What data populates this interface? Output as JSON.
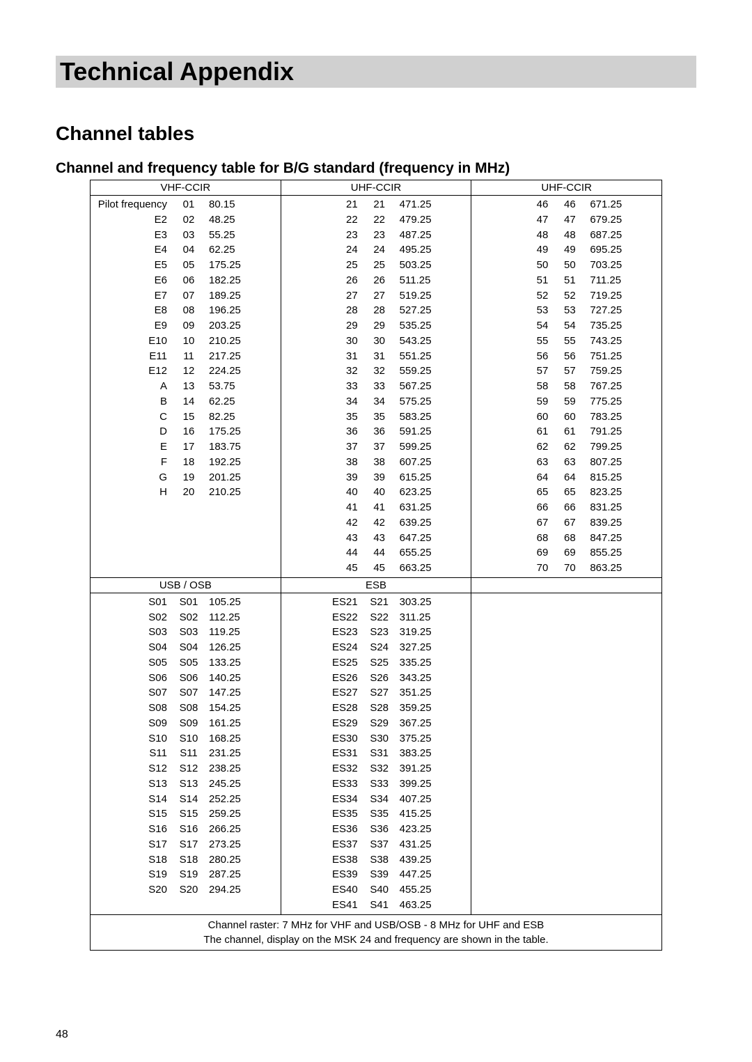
{
  "page_number": "48",
  "title": "Technical Appendix",
  "subtitle": "Channel tables",
  "section_title": "Channel and frequency table for B/G standard (frequency in MHz)",
  "footer_note1": "Channel raster: 7 MHz for VHF and USB/OSB - 8 MHz for UHF and ESB",
  "footer_note2": "The channel, display on the MSK 24 and frequency are shown in the table.",
  "top_bands": [
    {
      "header": "VHF-CCIR",
      "rows": [
        [
          "Pilot frequency",
          "01",
          "80.15"
        ],
        [
          "E2",
          "02",
          "48.25"
        ],
        [
          "E3",
          "03",
          "55.25"
        ],
        [
          "E4",
          "04",
          "62.25"
        ],
        [
          "E5",
          "05",
          "175.25"
        ],
        [
          "E6",
          "06",
          "182.25"
        ],
        [
          "E7",
          "07",
          "189.25"
        ],
        [
          "E8",
          "08",
          "196.25"
        ],
        [
          "E9",
          "09",
          "203.25"
        ],
        [
          "E10",
          "10",
          "210.25"
        ],
        [
          "E11",
          "11",
          "217.25"
        ],
        [
          "E12",
          "12",
          "224.25"
        ],
        [
          "A",
          "13",
          "53.75"
        ],
        [
          "B",
          "14",
          "62.25"
        ],
        [
          "C",
          "15",
          "82.25"
        ],
        [
          "D",
          "16",
          "175.25"
        ],
        [
          "E",
          "17",
          "183.75"
        ],
        [
          "F",
          "18",
          "192.25"
        ],
        [
          "G",
          "19",
          "201.25"
        ],
        [
          "H",
          "20",
          "210.25"
        ],
        [
          "",
          "",
          ""
        ],
        [
          "",
          "",
          ""
        ],
        [
          "",
          "",
          ""
        ],
        [
          "",
          "",
          ""
        ],
        [
          "",
          "",
          ""
        ]
      ]
    },
    {
      "header": "UHF-CCIR",
      "rows": [
        [
          "21",
          "21",
          "471.25"
        ],
        [
          "22",
          "22",
          "479.25"
        ],
        [
          "23",
          "23",
          "487.25"
        ],
        [
          "24",
          "24",
          "495.25"
        ],
        [
          "25",
          "25",
          "503.25"
        ],
        [
          "26",
          "26",
          "511.25"
        ],
        [
          "27",
          "27",
          "519.25"
        ],
        [
          "28",
          "28",
          "527.25"
        ],
        [
          "29",
          "29",
          "535.25"
        ],
        [
          "30",
          "30",
          "543.25"
        ],
        [
          "31",
          "31",
          "551.25"
        ],
        [
          "32",
          "32",
          "559.25"
        ],
        [
          "33",
          "33",
          "567.25"
        ],
        [
          "34",
          "34",
          "575.25"
        ],
        [
          "35",
          "35",
          "583.25"
        ],
        [
          "36",
          "36",
          "591.25"
        ],
        [
          "37",
          "37",
          "599.25"
        ],
        [
          "38",
          "38",
          "607.25"
        ],
        [
          "39",
          "39",
          "615.25"
        ],
        [
          "40",
          "40",
          "623.25"
        ],
        [
          "41",
          "41",
          "631.25"
        ],
        [
          "42",
          "42",
          "639.25"
        ],
        [
          "43",
          "43",
          "647.25"
        ],
        [
          "44",
          "44",
          "655.25"
        ],
        [
          "45",
          "45",
          "663.25"
        ]
      ]
    },
    {
      "header": "UHF-CCIR",
      "rows": [
        [
          "46",
          "46",
          "671.25"
        ],
        [
          "47",
          "47",
          "679.25"
        ],
        [
          "48",
          "48",
          "687.25"
        ],
        [
          "49",
          "49",
          "695.25"
        ],
        [
          "50",
          "50",
          "703.25"
        ],
        [
          "51",
          "51",
          "711.25"
        ],
        [
          "52",
          "52",
          "719.25"
        ],
        [
          "53",
          "53",
          "727.25"
        ],
        [
          "54",
          "54",
          "735.25"
        ],
        [
          "55",
          "55",
          "743.25"
        ],
        [
          "56",
          "56",
          "751.25"
        ],
        [
          "57",
          "57",
          "759.25"
        ],
        [
          "58",
          "58",
          "767.25"
        ],
        [
          "59",
          "59",
          "775.25"
        ],
        [
          "60",
          "60",
          "783.25"
        ],
        [
          "61",
          "61",
          "791.25"
        ],
        [
          "62",
          "62",
          "799.25"
        ],
        [
          "63",
          "63",
          "807.25"
        ],
        [
          "64",
          "64",
          "815.25"
        ],
        [
          "65",
          "65",
          "823.25"
        ],
        [
          "66",
          "66",
          "831.25"
        ],
        [
          "67",
          "67",
          "839.25"
        ],
        [
          "68",
          "68",
          "847.25"
        ],
        [
          "69",
          "69",
          "855.25"
        ],
        [
          "70",
          "70",
          "863.25"
        ]
      ]
    }
  ],
  "bottom_bands": [
    {
      "header": "USB / OSB",
      "rows": [
        [
          "S01",
          "S01",
          "105.25"
        ],
        [
          "S02",
          "S02",
          "112.25"
        ],
        [
          "S03",
          "S03",
          "119.25"
        ],
        [
          "S04",
          "S04",
          "126.25"
        ],
        [
          "S05",
          "S05",
          "133.25"
        ],
        [
          "S06",
          "S06",
          "140.25"
        ],
        [
          "S07",
          "S07",
          "147.25"
        ],
        [
          "S08",
          "S08",
          "154.25"
        ],
        [
          "S09",
          "S09",
          "161.25"
        ],
        [
          "S10",
          "S10",
          "168.25"
        ],
        [
          "S11",
          "S11",
          "231.25"
        ],
        [
          "S12",
          "S12",
          "238.25"
        ],
        [
          "S13",
          "S13",
          "245.25"
        ],
        [
          "S14",
          "S14",
          "252.25"
        ],
        [
          "S15",
          "S15",
          "259.25"
        ],
        [
          "S16",
          "S16",
          "266.25"
        ],
        [
          "S17",
          "S17",
          "273.25"
        ],
        [
          "S18",
          "S18",
          "280.25"
        ],
        [
          "S19",
          "S19",
          "287.25"
        ],
        [
          "S20",
          "S20",
          "294.25"
        ],
        [
          "",
          "",
          ""
        ]
      ]
    },
    {
      "header": "ESB",
      "rows": [
        [
          "ES21",
          "S21",
          "303.25"
        ],
        [
          "ES22",
          "S22",
          "311.25"
        ],
        [
          "ES23",
          "S23",
          "319.25"
        ],
        [
          "ES24",
          "S24",
          "327.25"
        ],
        [
          "ES25",
          "S25",
          "335.25"
        ],
        [
          "ES26",
          "S26",
          "343.25"
        ],
        [
          "ES27",
          "S27",
          "351.25"
        ],
        [
          "ES28",
          "S28",
          "359.25"
        ],
        [
          "ES29",
          "S29",
          "367.25"
        ],
        [
          "ES30",
          "S30",
          "375.25"
        ],
        [
          "ES31",
          "S31",
          "383.25"
        ],
        [
          "ES32",
          "S32",
          "391.25"
        ],
        [
          "ES33",
          "S33",
          "399.25"
        ],
        [
          "ES34",
          "S34",
          "407.25"
        ],
        [
          "ES35",
          "S35",
          "415.25"
        ],
        [
          "ES36",
          "S36",
          "423.25"
        ],
        [
          "ES37",
          "S37",
          "431.25"
        ],
        [
          "ES38",
          "S38",
          "439.25"
        ],
        [
          "ES39",
          "S39",
          "447.25"
        ],
        [
          "ES40",
          "S40",
          "455.25"
        ],
        [
          "ES41",
          "S41",
          "463.25"
        ]
      ]
    },
    {
      "header": "",
      "rows": []
    }
  ]
}
